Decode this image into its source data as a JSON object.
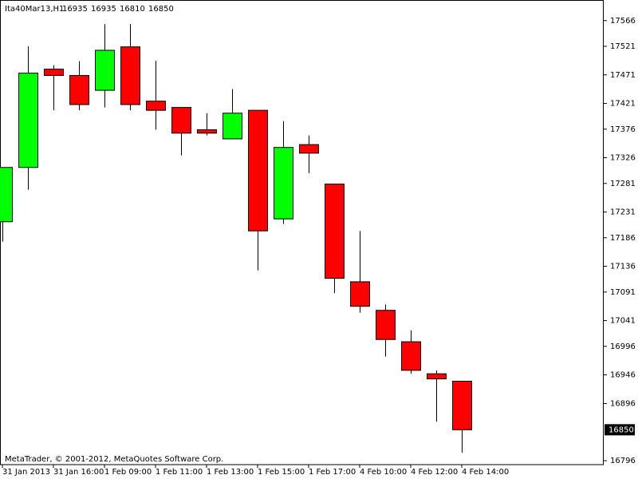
{
  "chart_data": {
    "type": "candlestick",
    "title": "Ita40Mar13,H1",
    "footer": "MetaTrader, © 2001-2012, MetaQuotes Software Corp.",
    "categories": [
      "31 Jan 2013",
      null,
      "31 Jan 16:00",
      null,
      "1 Feb 09:00",
      null,
      "1 Feb 11:00",
      null,
      "1 Feb 13:00",
      null,
      "1 Feb 15:00",
      null,
      "1 Feb 17:00",
      null,
      "4 Feb 10:00",
      null,
      "4 Feb 12:00",
      null,
      "4 Feb 14:00"
    ],
    "open": [
      17214,
      17309,
      17481,
      17470,
      17444,
      17520,
      17425,
      17414,
      17375,
      17359,
      17409,
      17219,
      17349,
      17280,
      17109,
      17059,
      17004,
      16948,
      16935
    ],
    "high": [
      17309,
      17521,
      17488,
      17495,
      17560,
      17560,
      17496,
      17414,
      17404,
      17446,
      17409,
      17390,
      17365,
      17280,
      17198,
      17069,
      17024,
      16954,
      16935
    ],
    "low": [
      17179,
      17270,
      17409,
      17409,
      17414,
      17409,
      17375,
      17330,
      17365,
      17359,
      17129,
      17210,
      17299,
      17089,
      17055,
      16978,
      16948,
      16864,
      16810
    ],
    "close": [
      17309,
      17474,
      17470,
      17419,
      17514,
      17419,
      17409,
      17369,
      17369,
      17404,
      17198,
      17344,
      17334,
      17115,
      17066,
      17008,
      16954,
      16939,
      16850
    ],
    "up_color": "#00ff00",
    "down_color": "#ff0000",
    "current_price": 16850,
    "ylim": [
      16789,
      17602
    ],
    "yticks": [
      17566,
      17521,
      17471,
      17421,
      17376,
      17326,
      17281,
      17231,
      17186,
      17136,
      17091,
      17041,
      16996,
      16946,
      16896,
      16796
    ]
  }
}
